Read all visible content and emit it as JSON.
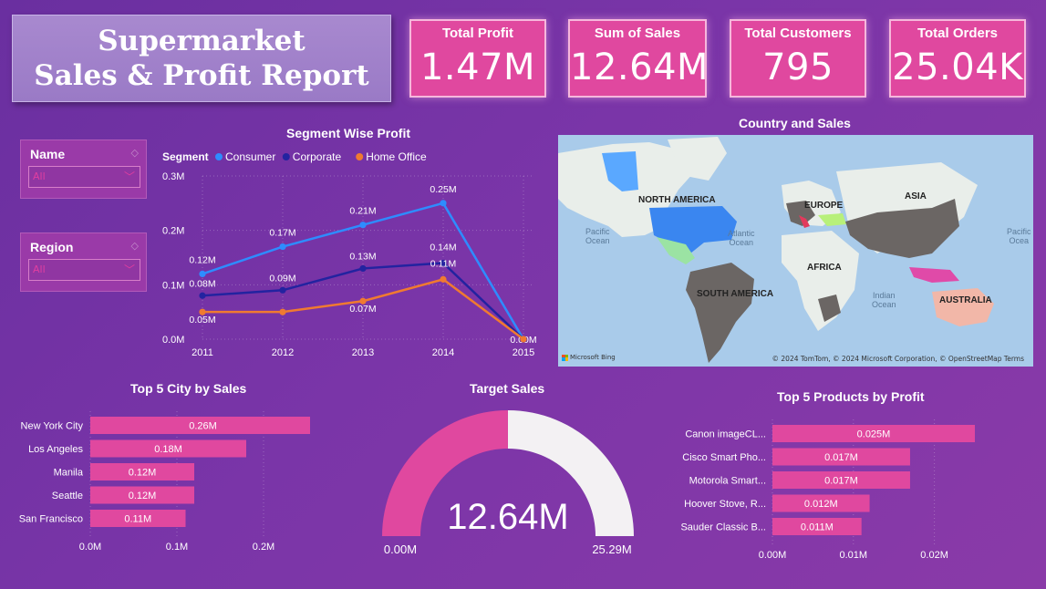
{
  "report": {
    "title_line1": "Supermarket",
    "title_line2": "Sales & Profit Report"
  },
  "kpis": [
    {
      "label": "Total Profit",
      "value": "1.47M"
    },
    {
      "label": "Sum of Sales",
      "value": "12.64M"
    },
    {
      "label": "Total Customers",
      "value": "795"
    },
    {
      "label": "Total Orders",
      "value": "25.04K"
    }
  ],
  "slicers": [
    {
      "title": "Name",
      "value": "All"
    },
    {
      "title": "Region",
      "value": "All"
    }
  ],
  "colors": {
    "accent_pink": "#e0489f",
    "consumer": "#2e8cff",
    "corporate": "#2323a0",
    "home_office": "#f07a30",
    "gauge_fill": "#e0489f",
    "gauge_track": "#f3f1f3"
  },
  "segment_chart": {
    "title": "Segment Wise Profit",
    "legend_title": "Segment",
    "y_ticks": [
      "0.3M",
      "0.2M",
      "0.1M",
      "0.0M"
    ],
    "x_ticks": [
      "2011",
      "2012",
      "2013",
      "2014",
      "2015"
    ]
  },
  "map": {
    "title": "Country and Sales",
    "labels": {
      "north_america": "NORTH AMERICA",
      "south_america": "SOUTH AMERICA",
      "europe": "EUROPE",
      "asia": "ASIA",
      "africa": "AFRICA",
      "australia": "AUSTRALIA",
      "pacific1": "Pacific",
      "pacific1b": "Ocean",
      "atlantic": "Atlantic",
      "atlantic_b": "Ocean",
      "indian": "Indian",
      "indian_b": "Ocean",
      "pacific2": "Pacific",
      "pacific2b": "Ocea"
    },
    "copyright": "© 2024 TomTom, © 2024 Microsoft Corporation, © OpenStreetMap  Terms",
    "provider": "Microsoft Bing"
  },
  "city_chart": {
    "title": "Top 5 City by Sales",
    "x_ticks": [
      "0.0M",
      "0.1M",
      "0.2M"
    ]
  },
  "gauge": {
    "title": "Target Sales",
    "value_label": "12.64M",
    "min_label": "0.00M",
    "max_label": "25.29M"
  },
  "product_chart": {
    "title": "Top 5 Products by Profit",
    "x_ticks": [
      "0.00M",
      "0.01M",
      "0.02M"
    ]
  },
  "chart_data": [
    {
      "type": "line",
      "title": "Segment Wise Profit",
      "x": [
        2011,
        2012,
        2013,
        2014,
        2015
      ],
      "ylim": [
        0,
        0.3
      ],
      "series": [
        {
          "name": "Consumer",
          "values": [
            0.12,
            0.17,
            0.21,
            0.25,
            0.0
          ],
          "labels": [
            "0.12M",
            "0.17M",
            "0.21M",
            "0.25M",
            "0.00M"
          ]
        },
        {
          "name": "Corporate",
          "values": [
            0.08,
            0.09,
            0.13,
            0.14,
            0.0
          ],
          "labels": [
            "0.08M",
            "0.09M",
            "0.13M",
            "0.14M",
            ""
          ]
        },
        {
          "name": "Home Office",
          "values": [
            0.05,
            0.05,
            0.07,
            0.11,
            0.0
          ],
          "labels": [
            "0.05M",
            "",
            "0.07M",
            "0.11M",
            ""
          ]
        }
      ],
      "legend": "top-left",
      "grid": true
    },
    {
      "type": "bar",
      "orientation": "horizontal",
      "title": "Top 5 City by Sales",
      "categories": [
        "New York City",
        "Los Angeles",
        "Manila",
        "Seattle",
        "San Francisco"
      ],
      "values": [
        0.26,
        0.18,
        0.12,
        0.12,
        0.11
      ],
      "labels": [
        "0.26M",
        "0.18M",
        "0.12M",
        "0.12M",
        "0.11M"
      ],
      "xlim": [
        0,
        0.25
      ]
    },
    {
      "type": "bar",
      "orientation": "horizontal",
      "title": "Top 5 Products by Profit",
      "categories": [
        "Canon imageCL...",
        "Cisco Smart Pho...",
        "Motorola Smart...",
        "Hoover Stove, R...",
        "Sauder Classic B..."
      ],
      "values": [
        0.025,
        0.017,
        0.017,
        0.012,
        0.011
      ],
      "labels": [
        "0.025M",
        "0.017M",
        "0.017M",
        "0.012M",
        "0.011M"
      ],
      "xlim": [
        0,
        0.025
      ]
    },
    {
      "type": "gauge",
      "title": "Target Sales",
      "value": 12.64,
      "min": 0,
      "max": 25.29
    }
  ]
}
